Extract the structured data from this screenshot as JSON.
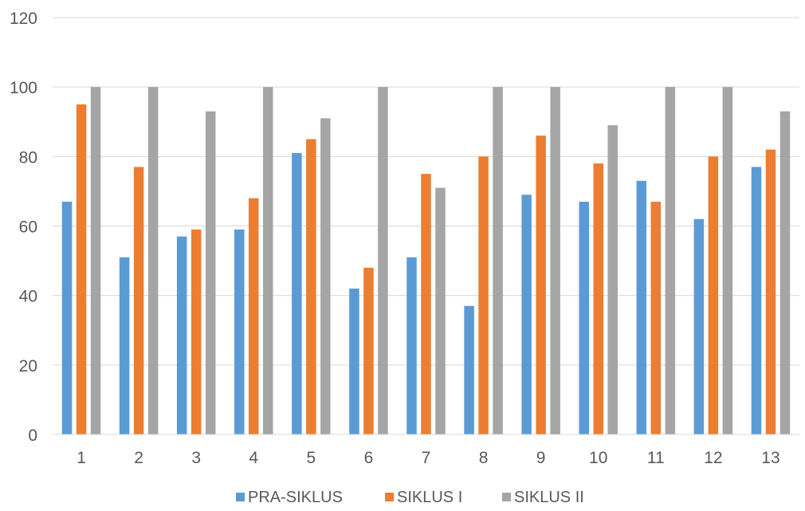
{
  "chart_data": {
    "type": "bar",
    "categories": [
      "1",
      "2",
      "3",
      "4",
      "5",
      "6",
      "7",
      "8",
      "9",
      "10",
      "11",
      "12",
      "13"
    ],
    "series": [
      {
        "name": "PRA-SIKLUS",
        "color": "#5B9BD5",
        "values": [
          67,
          51,
          57,
          59,
          81,
          42,
          51,
          37,
          69,
          67,
          73,
          62,
          77
        ]
      },
      {
        "name": "SIKLUS I",
        "color": "#ED7D31",
        "values": [
          95,
          77,
          59,
          68,
          85,
          48,
          75,
          80,
          86,
          78,
          67,
          80,
          82
        ]
      },
      {
        "name": "SIKLUS II",
        "color": "#A5A5A5",
        "values": [
          100,
          100,
          93,
          100,
          91,
          100,
          71,
          100,
          100,
          89,
          100,
          100,
          93
        ]
      }
    ],
    "yticks": [
      "0",
      "20",
      "40",
      "60",
      "80",
      "100",
      "120"
    ],
    "ylim": [
      0,
      120
    ],
    "grid": true,
    "legend_position": "bottom"
  }
}
